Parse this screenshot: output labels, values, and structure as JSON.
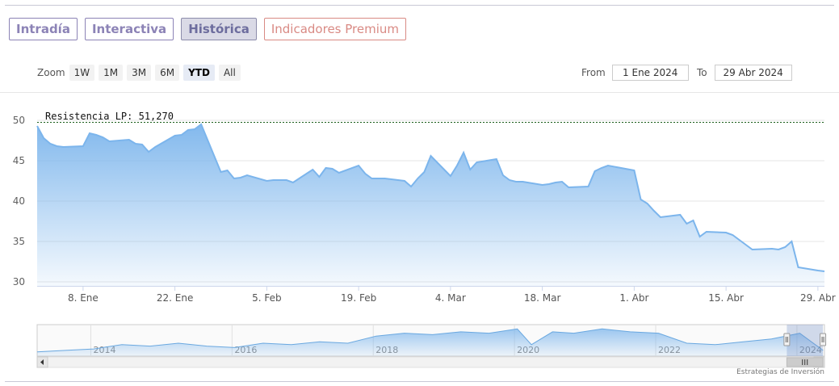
{
  "tabs": [
    {
      "label": "Intradía",
      "state": "normal"
    },
    {
      "label": "Interactiva",
      "state": "normal"
    },
    {
      "label": "Histórica",
      "state": "active"
    },
    {
      "label": "Indicadores Premium",
      "state": "premium"
    }
  ],
  "zoom": {
    "label": "Zoom",
    "buttons": [
      "1W",
      "1M",
      "3M",
      "6M",
      "YTD",
      "All"
    ],
    "active": "YTD"
  },
  "range": {
    "from_label": "From",
    "from_value": "1 Ene 2024",
    "to_label": "To",
    "to_value": "29 Abr 2024"
  },
  "credits": "Estrategias de Inversión",
  "colors": {
    "line": "#7cb5ec",
    "resistance": "#1a5e1a",
    "tab_border": "#8c83b6",
    "premium": "#d98a84"
  },
  "chart_data": [
    {
      "type": "area",
      "y_tick_labels": [
        "50",
        "45",
        "40",
        "35",
        "30"
      ],
      "x_tick_labels": [
        "8. Ene",
        "22. Ene",
        "5. Feb",
        "19. Feb",
        "4. Mar",
        "18. Mar",
        "1. Abr",
        "15. Abr",
        "29. Abr"
      ],
      "ylim": [
        29.5,
        50.5
      ],
      "xlim": [
        "2024-01-01",
        "2024-04-30"
      ],
      "grid": true,
      "annotation": {
        "label": "Resistencia LP: 51,270",
        "value": 51.27
      },
      "series": [
        {
          "x": [
            "2024-01-01",
            "2024-01-02",
            "2024-01-03",
            "2024-01-04",
            "2024-01-05",
            "2024-01-08",
            "2024-01-09",
            "2024-01-10",
            "2024-01-11",
            "2024-01-12",
            "2024-01-15",
            "2024-01-16",
            "2024-01-17",
            "2024-01-18",
            "2024-01-19",
            "2024-01-22",
            "2024-01-23",
            "2024-01-24",
            "2024-01-25",
            "2024-01-26",
            "2024-01-29",
            "2024-01-30",
            "2024-01-31",
            "2024-02-01",
            "2024-02-02",
            "2024-02-05",
            "2024-02-06",
            "2024-02-07",
            "2024-02-08",
            "2024-02-09",
            "2024-02-12",
            "2024-02-13",
            "2024-02-14",
            "2024-02-15",
            "2024-02-16",
            "2024-02-19",
            "2024-02-20",
            "2024-02-21",
            "2024-02-22",
            "2024-02-23",
            "2024-02-26",
            "2024-02-27",
            "2024-02-28",
            "2024-02-29",
            "2024-03-01",
            "2024-03-04",
            "2024-03-05",
            "2024-03-06",
            "2024-03-07",
            "2024-03-08",
            "2024-03-11",
            "2024-03-12",
            "2024-03-13",
            "2024-03-14",
            "2024-03-15",
            "2024-03-18",
            "2024-03-19",
            "2024-03-20",
            "2024-03-21",
            "2024-03-22",
            "2024-03-25",
            "2024-03-26",
            "2024-03-27",
            "2024-03-28",
            "2024-04-01",
            "2024-04-02",
            "2024-04-03",
            "2024-04-04",
            "2024-04-05",
            "2024-04-08",
            "2024-04-09",
            "2024-04-10",
            "2024-04-11",
            "2024-04-12",
            "2024-04-15",
            "2024-04-16",
            "2024-04-17",
            "2024-04-18",
            "2024-04-19",
            "2024-04-22",
            "2024-04-23",
            "2024-04-24",
            "2024-04-25",
            "2024-04-26",
            "2024-04-29",
            "2024-04-30"
          ],
          "values": [
            49.3,
            47.8,
            47.1,
            46.8,
            46.7,
            46.8,
            48.4,
            48.2,
            47.9,
            47.4,
            47.6,
            47.1,
            47.0,
            46.1,
            46.7,
            48.1,
            48.2,
            48.8,
            48.9,
            49.5,
            43.6,
            43.8,
            42.8,
            42.9,
            43.2,
            42.5,
            42.6,
            42.6,
            42.6,
            42.3,
            43.9,
            43.0,
            44.1,
            44.0,
            43.5,
            44.4,
            43.4,
            42.8,
            42.8,
            42.8,
            42.5,
            41.8,
            42.8,
            43.6,
            45.6,
            43.1,
            44.4,
            46.0,
            43.9,
            44.8,
            45.2,
            43.2,
            42.6,
            42.4,
            42.4,
            42.0,
            42.1,
            42.3,
            42.4,
            41.7,
            41.8,
            43.7,
            44.1,
            44.4,
            43.8,
            40.2,
            39.7,
            38.8,
            38.0,
            38.3,
            37.2,
            37.6,
            35.6,
            36.2,
            36.1,
            35.8,
            35.2,
            34.6,
            34.0,
            34.1,
            34.0,
            34.3,
            35.0,
            31.8,
            31.4,
            31.3
          ]
        }
      ]
    },
    {
      "type": "area",
      "x_tick_labels": [
        "2014",
        "2016",
        "2018",
        "2020",
        "2022",
        "2024"
      ],
      "xlim": [
        2013.2,
        2024.35
      ],
      "navigator_selection": [
        "2024-01-01",
        "2024-04-30"
      ],
      "series": [
        {
          "x": [
            2013.2,
            2013.6,
            2014.0,
            2014.4,
            2014.8,
            2015.2,
            2015.6,
            2016.0,
            2016.4,
            2016.8,
            2017.2,
            2017.6,
            2018.0,
            2018.4,
            2018.8,
            2019.2,
            2019.6,
            2020.0,
            2020.2,
            2020.5,
            2020.8,
            2021.2,
            2021.6,
            2022.0,
            2022.4,
            2022.8,
            2023.2,
            2023.6,
            2024.0,
            2024.33
          ],
          "values": [
            31,
            32,
            33,
            36,
            35,
            37,
            35,
            34,
            37,
            36,
            38,
            37,
            42,
            44,
            43,
            45,
            44,
            47,
            36,
            45,
            44,
            47,
            45,
            44,
            37,
            36,
            38,
            40,
            44,
            32
          ]
        }
      ]
    }
  ]
}
